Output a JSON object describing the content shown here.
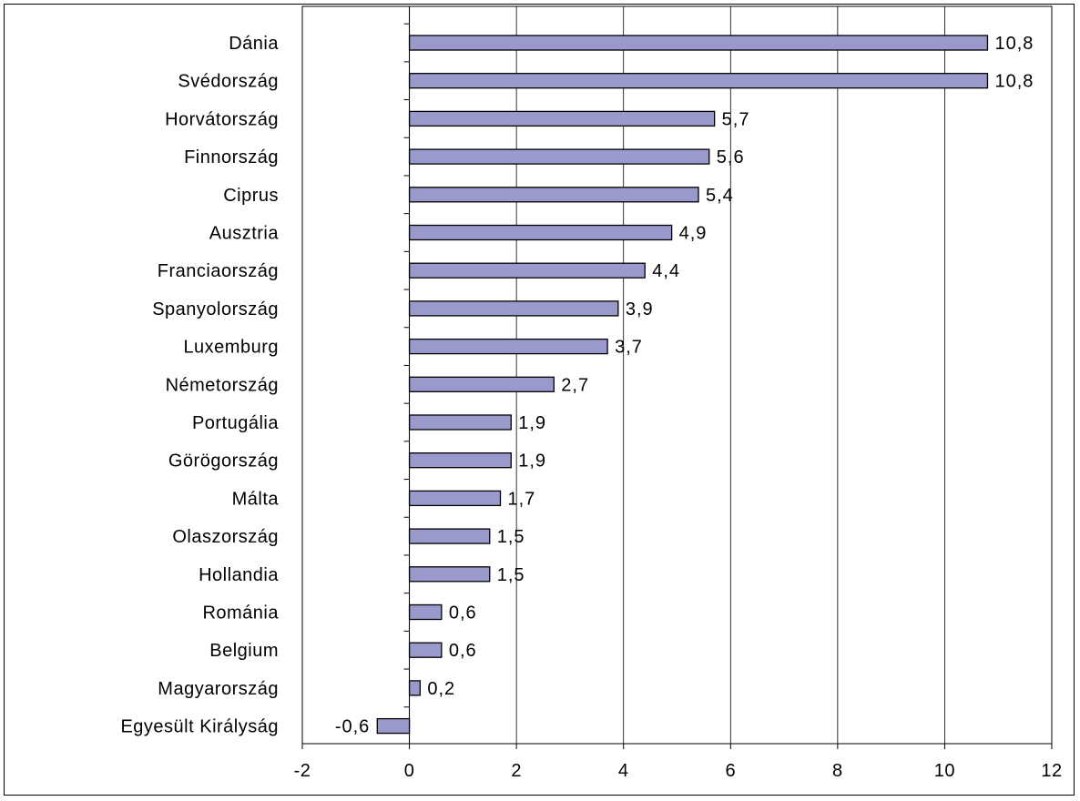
{
  "chart_data": {
    "type": "bar",
    "orientation": "horizontal",
    "title": "",
    "xlabel": "",
    "ylabel": "",
    "categories": [
      "Dánia",
      "Svédország",
      "Horvátország",
      "Finnország",
      "Ciprus",
      "Ausztria",
      "Franciaország",
      "Spanyolország",
      "Luxemburg",
      "Németország",
      "Portugália",
      "Görögország",
      "Málta",
      "Olaszország",
      "Hollandia",
      "Románia",
      "Belgium",
      "Magyarország",
      "Egyesült Királyság"
    ],
    "values": [
      10.8,
      10.8,
      5.7,
      5.6,
      5.4,
      4.9,
      4.4,
      3.9,
      3.7,
      2.7,
      1.9,
      1.9,
      1.7,
      1.5,
      1.5,
      0.6,
      0.6,
      0.2,
      -0.6
    ],
    "value_labels": [
      "10,8",
      "10,8",
      "5,7",
      "5,6",
      "5,4",
      "4,9",
      "4,4",
      "3,9",
      "3,7",
      "2,7",
      "1,9",
      "1,9",
      "1,7",
      "1,5",
      "1,5",
      "0,6",
      "0,6",
      "0,2",
      "-0,6"
    ],
    "x_ticks": [
      "-2",
      "0",
      "2",
      "4",
      "6",
      "8",
      "10",
      "12"
    ],
    "xlim": [
      -2,
      12
    ],
    "grid": "vertical",
    "legend": "none",
    "colors": {
      "bar_fill": "#9999cc",
      "bar_stroke": "#000000",
      "grid": "#000000",
      "axis": "#000000"
    }
  }
}
